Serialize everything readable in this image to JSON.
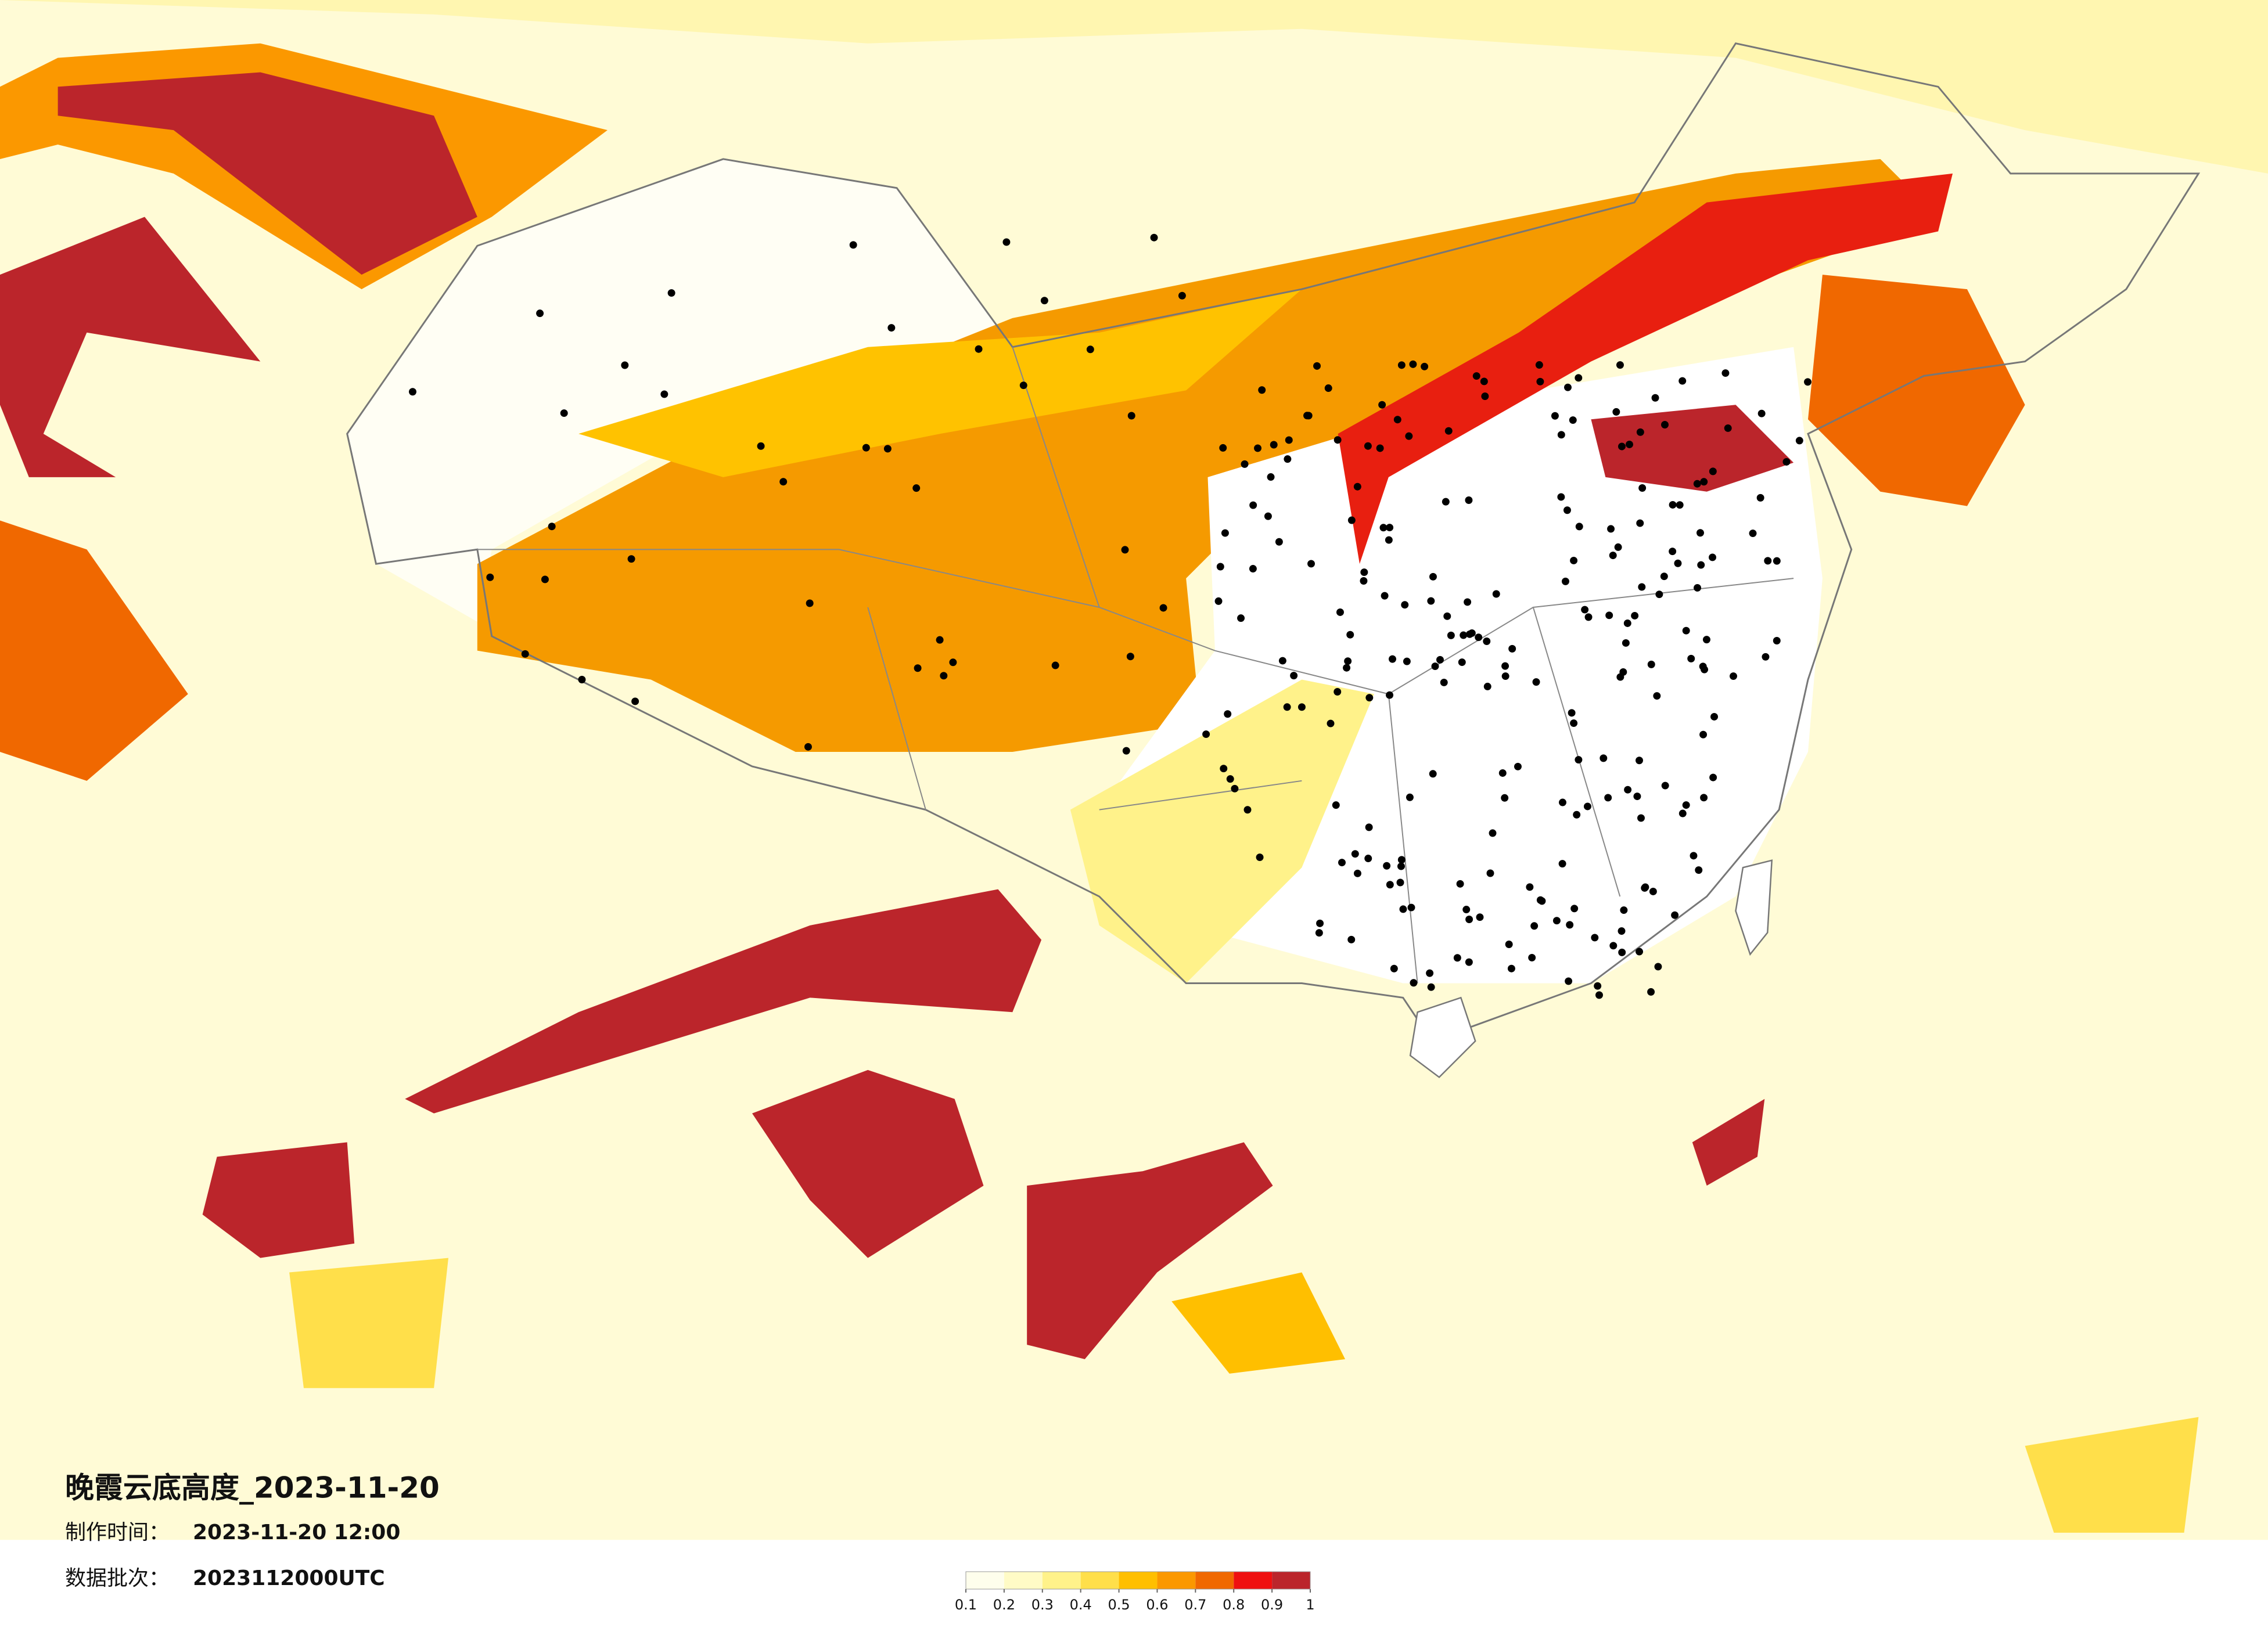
{
  "header": {
    "title": "晚霞云底高度_2023-11-20",
    "made_time_label": "制作时间：",
    "made_time": "2023-11-20 12:00",
    "batch_label": "数据批次：",
    "batch": "2023112000UTC"
  },
  "colorbar": {
    "colors": [
      "#fefeec",
      "#fffbc6",
      "#fff28a",
      "#ffdf4a",
      "#ffbf00",
      "#fb9800",
      "#f06800",
      "#ef1010",
      "#bb252b"
    ],
    "ticks": [
      0.1,
      0.2,
      0.3,
      0.4,
      0.5,
      0.6,
      0.7,
      0.8,
      0.9,
      1
    ]
  }
}
